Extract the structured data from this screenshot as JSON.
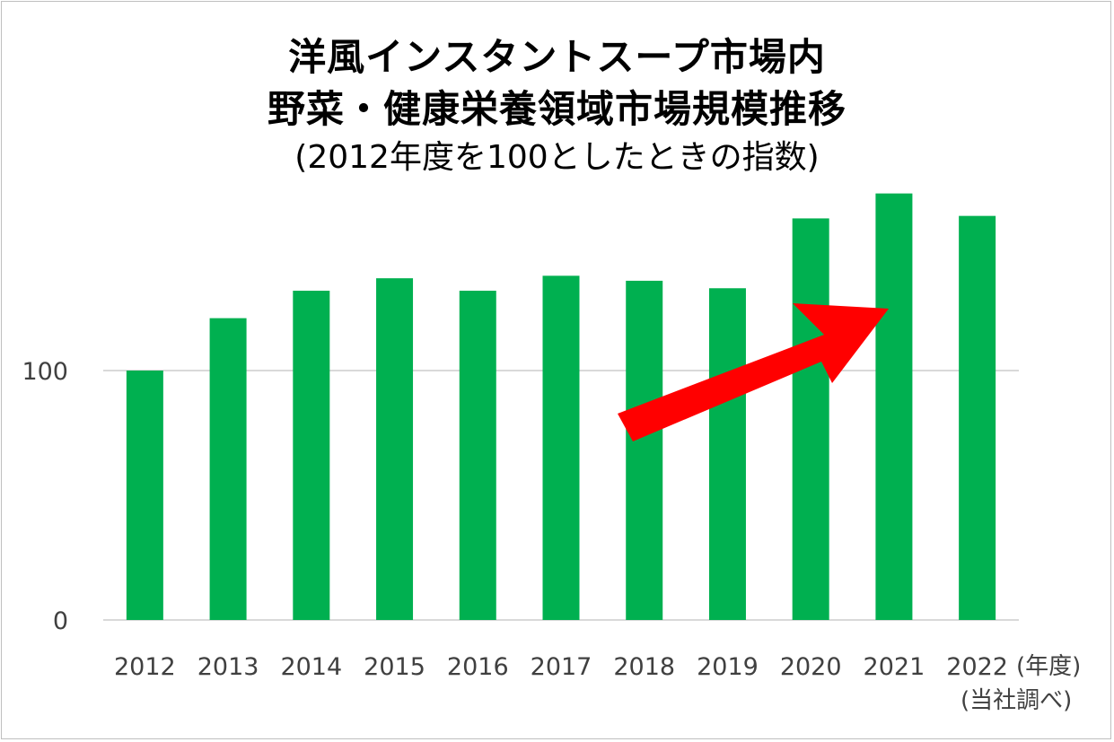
{
  "chart_data": {
    "type": "bar",
    "title": [
      "洋風インスタントスープ市場内",
      "野菜・健康栄養領域市場規模推移"
    ],
    "subtitle": "(2012年度を100としたときの指数)",
    "categories": [
      "2012",
      "2013",
      "2014",
      "2015",
      "2016",
      "2017",
      "2018",
      "2019",
      "2020",
      "2021",
      "2022"
    ],
    "values": [
      100,
      121,
      132,
      137,
      132,
      138,
      136,
      133,
      161,
      171,
      162
    ],
    "x_unit": "(年度)",
    "source": "(当社調べ)",
    "y_ticks": [
      0,
      100
    ],
    "ylim": [
      0,
      175
    ],
    "grid": true,
    "bar_color": "#00b050",
    "annotation": {
      "type": "trend-arrow",
      "color": "#ff0000",
      "direction": "up-right"
    }
  }
}
